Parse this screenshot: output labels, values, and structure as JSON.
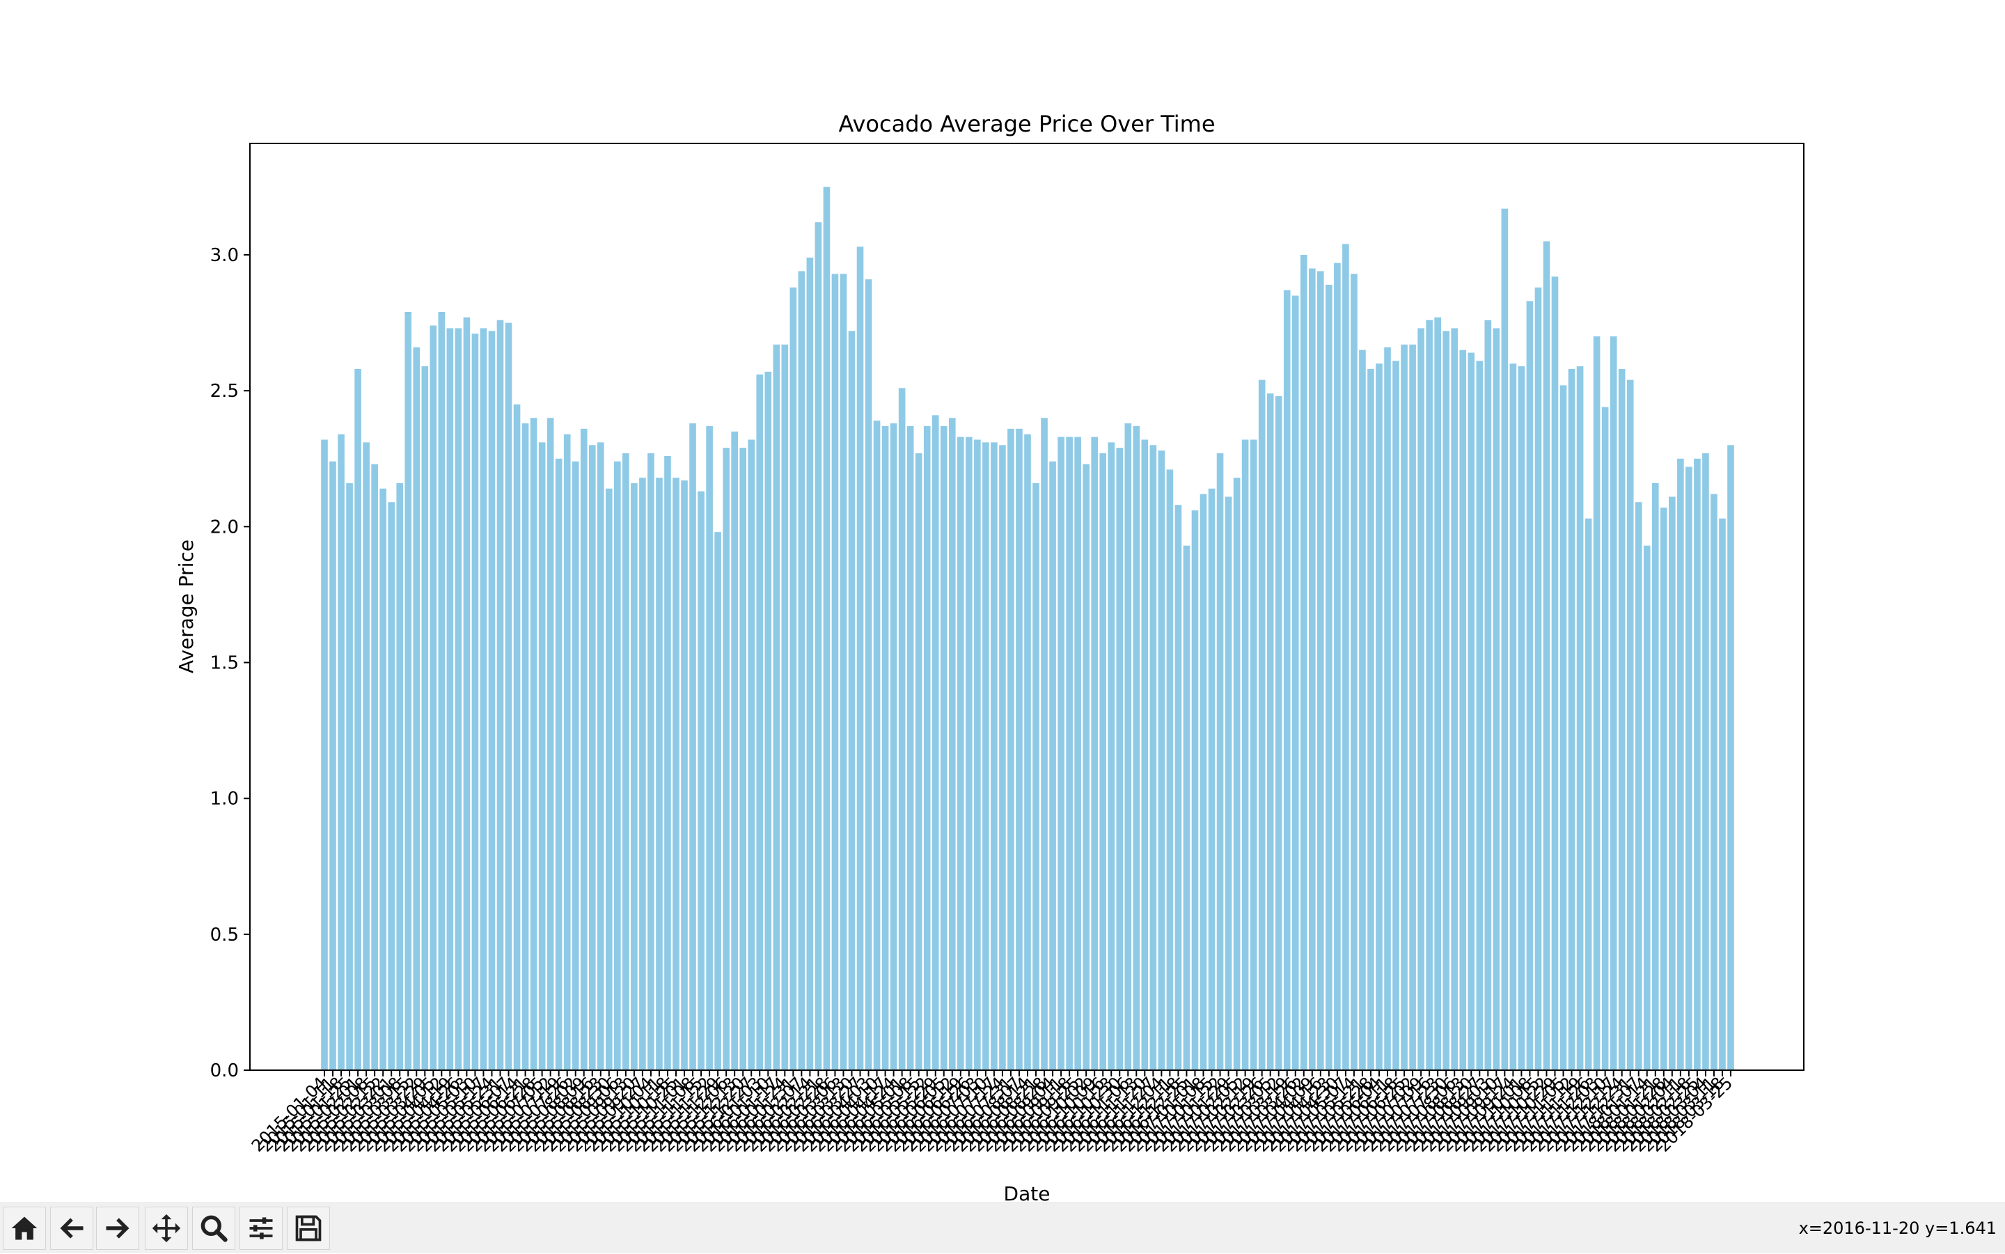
{
  "chart_data": {
    "type": "bar",
    "title": "Avocado Average Price Over Time",
    "xlabel": "Date",
    "ylabel": "Average Price",
    "ylim": [
      0,
      3.41
    ],
    "yticks": [
      0.0,
      0.5,
      1.0,
      1.5,
      2.0,
      2.5,
      3.0
    ],
    "ytick_labels": [
      "0.0",
      "0.5",
      "1.0",
      "1.5",
      "2.0",
      "2.5",
      "3.0"
    ],
    "bar_color": "#8ecae6",
    "grid": false,
    "categories": [
      "2015-01-04",
      "2015-01-11",
      "2015-01-18",
      "2015-01-25",
      "2015-02-01",
      "2015-02-08",
      "2015-02-15",
      "2015-02-22",
      "2015-03-01",
      "2015-03-08",
      "2015-03-15",
      "2015-03-22",
      "2015-03-29",
      "2015-04-05",
      "2015-04-12",
      "2015-04-19",
      "2015-04-26",
      "2015-05-03",
      "2015-05-10",
      "2015-05-17",
      "2015-05-24",
      "2015-05-31",
      "2015-06-07",
      "2015-06-14",
      "2015-06-21",
      "2015-06-28",
      "2015-07-05",
      "2015-07-12",
      "2015-07-19",
      "2015-07-26",
      "2015-08-02",
      "2015-08-09",
      "2015-08-16",
      "2015-08-23",
      "2015-08-30",
      "2015-09-06",
      "2015-09-13",
      "2015-09-20",
      "2015-09-27",
      "2015-10-04",
      "2015-10-11",
      "2015-10-18",
      "2015-10-25",
      "2015-11-01",
      "2015-11-08",
      "2015-11-15",
      "2015-11-22",
      "2015-11-29",
      "2015-12-06",
      "2015-12-13",
      "2015-12-20",
      "2015-12-27",
      "2016-01-03",
      "2016-01-10",
      "2016-01-17",
      "2016-01-24",
      "2016-01-31",
      "2016-02-07",
      "2016-02-14",
      "2016-02-21",
      "2016-02-28",
      "2016-03-06",
      "2016-03-13",
      "2016-03-20",
      "2016-03-27",
      "2016-04-03",
      "2016-04-10",
      "2016-04-17",
      "2016-04-24",
      "2016-05-01",
      "2016-05-08",
      "2016-05-15",
      "2016-05-22",
      "2016-05-29",
      "2016-06-05",
      "2016-06-12",
      "2016-06-19",
      "2016-06-26",
      "2016-07-03",
      "2016-07-10",
      "2016-07-17",
      "2016-07-24",
      "2016-07-31",
      "2016-08-07",
      "2016-08-14",
      "2016-08-21",
      "2016-08-28",
      "2016-09-04",
      "2016-09-11",
      "2016-09-18",
      "2016-09-25",
      "2016-10-02",
      "2016-10-09",
      "2016-10-16",
      "2016-10-23",
      "2016-10-30",
      "2016-11-06",
      "2016-11-13",
      "2016-11-20",
      "2016-11-27",
      "2016-12-04",
      "2016-12-11",
      "2016-12-18",
      "2016-12-25",
      "2017-01-01",
      "2017-01-08",
      "2017-01-15",
      "2017-01-22",
      "2017-01-29",
      "2017-02-05",
      "2017-02-12",
      "2017-02-19",
      "2017-02-26",
      "2017-03-05",
      "2017-03-12",
      "2017-03-19",
      "2017-03-26",
      "2017-04-02",
      "2017-04-09",
      "2017-04-16",
      "2017-04-23",
      "2017-04-30",
      "2017-05-07",
      "2017-05-14",
      "2017-05-21",
      "2017-05-28",
      "2017-06-04",
      "2017-06-11",
      "2017-06-18",
      "2017-06-25",
      "2017-07-02",
      "2017-07-09",
      "2017-07-16",
      "2017-07-23",
      "2017-07-30",
      "2017-08-06",
      "2017-08-13",
      "2017-08-20",
      "2017-08-27",
      "2017-09-03",
      "2017-09-10",
      "2017-09-17",
      "2017-09-24",
      "2017-10-01",
      "2017-10-08",
      "2017-10-15",
      "2017-10-22",
      "2017-10-29",
      "2017-11-05",
      "2017-11-12",
      "2017-11-19",
      "2017-11-26",
      "2017-12-03",
      "2017-12-10",
      "2017-12-17",
      "2017-12-24",
      "2017-12-31",
      "2018-01-07",
      "2018-01-14",
      "2018-01-21",
      "2018-01-28",
      "2018-02-04",
      "2018-02-11",
      "2018-02-18",
      "2018-02-25",
      "2018-03-04",
      "2018-03-11",
      "2018-03-18",
      "2018-03-25"
    ],
    "values": [
      2.32,
      2.24,
      2.34,
      2.16,
      2.58,
      2.31,
      2.23,
      2.14,
      2.09,
      2.16,
      2.79,
      2.66,
      2.59,
      2.74,
      2.79,
      2.73,
      2.73,
      2.77,
      2.71,
      2.73,
      2.72,
      2.76,
      2.75,
      2.45,
      2.38,
      2.4,
      2.31,
      2.4,
      2.25,
      2.34,
      2.24,
      2.36,
      2.3,
      2.31,
      2.14,
      2.24,
      2.27,
      2.16,
      2.18,
      2.27,
      2.18,
      2.26,
      2.18,
      2.17,
      2.38,
      2.13,
      2.37,
      1.98,
      2.29,
      2.35,
      2.29,
      2.32,
      2.56,
      2.57,
      2.67,
      2.67,
      2.88,
      2.94,
      2.99,
      3.12,
      3.25,
      2.93,
      2.93,
      2.72,
      3.03,
      2.91,
      2.39,
      2.37,
      2.38,
      2.51,
      2.37,
      2.27,
      2.37,
      2.41,
      2.37,
      2.4,
      2.33,
      2.33,
      2.32,
      2.31,
      2.31,
      2.3,
      2.36,
      2.36,
      2.34,
      2.16,
      2.4,
      2.24,
      2.33,
      2.33,
      2.33,
      2.23,
      2.33,
      2.27,
      2.31,
      2.29,
      2.38,
      2.37,
      2.32,
      2.3,
      2.28,
      2.21,
      2.08,
      1.93,
      2.06,
      2.12,
      2.14,
      2.27,
      2.11,
      2.18,
      2.32,
      2.32,
      2.54,
      2.49,
      2.48,
      2.87,
      2.85,
      3.0,
      2.95,
      2.94,
      2.89,
      2.97,
      3.04,
      2.93,
      2.65,
      2.58,
      2.6,
      2.66,
      2.61,
      2.67,
      2.67,
      2.73,
      2.76,
      2.77,
      2.72,
      2.73,
      2.65,
      2.64,
      2.61,
      2.76,
      2.73,
      3.17,
      2.6,
      2.59,
      2.83,
      2.88,
      3.05,
      2.92,
      2.52,
      2.58,
      2.59,
      2.03,
      2.7,
      2.44,
      2.7,
      2.58,
      2.54,
      2.09,
      1.93,
      2.16,
      2.07,
      2.11,
      2.25,
      2.22,
      2.25,
      2.27,
      2.12,
      2.03,
      2.3
    ]
  },
  "toolbar": {
    "buttons": [
      {
        "name": "home",
        "icon": "home-icon"
      },
      {
        "name": "back",
        "icon": "arrow-left-icon"
      },
      {
        "name": "forward",
        "icon": "arrow-right-icon"
      },
      {
        "name": "pan",
        "icon": "move-icon"
      },
      {
        "name": "zoom",
        "icon": "zoom-icon"
      },
      {
        "name": "configure",
        "icon": "sliders-icon"
      },
      {
        "name": "save",
        "icon": "save-icon"
      }
    ],
    "coords_text": "x=2016-11-20 y=1.641"
  }
}
